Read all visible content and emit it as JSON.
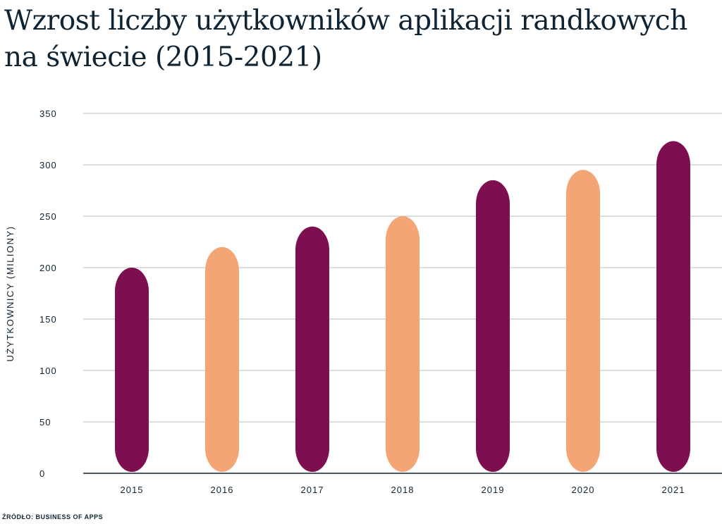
{
  "chart_data": {
    "type": "bar",
    "title": "Wzrost liczby użytkowników aplikacji randkowych na świecie (2015-2021)",
    "xlabel": "",
    "ylabel": "UŻYTKOWNICY (MILIONY)",
    "categories": [
      "2015",
      "2016",
      "2017",
      "2018",
      "2019",
      "2020",
      "2021"
    ],
    "values": [
      200,
      220,
      240,
      250,
      285,
      295,
      323
    ],
    "bar_colors": [
      "#7d0f50",
      "#f4a576",
      "#7d0f50",
      "#f4a576",
      "#7d0f50",
      "#f4a576",
      "#7d0f50"
    ],
    "ylim": [
      0,
      350
    ],
    "yticks": [
      "0",
      "50",
      "100",
      "150",
      "200",
      "250",
      "300",
      "350"
    ],
    "grid": true,
    "legend": "none"
  },
  "source": "ŹRÓDŁO: BUSINESS OF APPS"
}
